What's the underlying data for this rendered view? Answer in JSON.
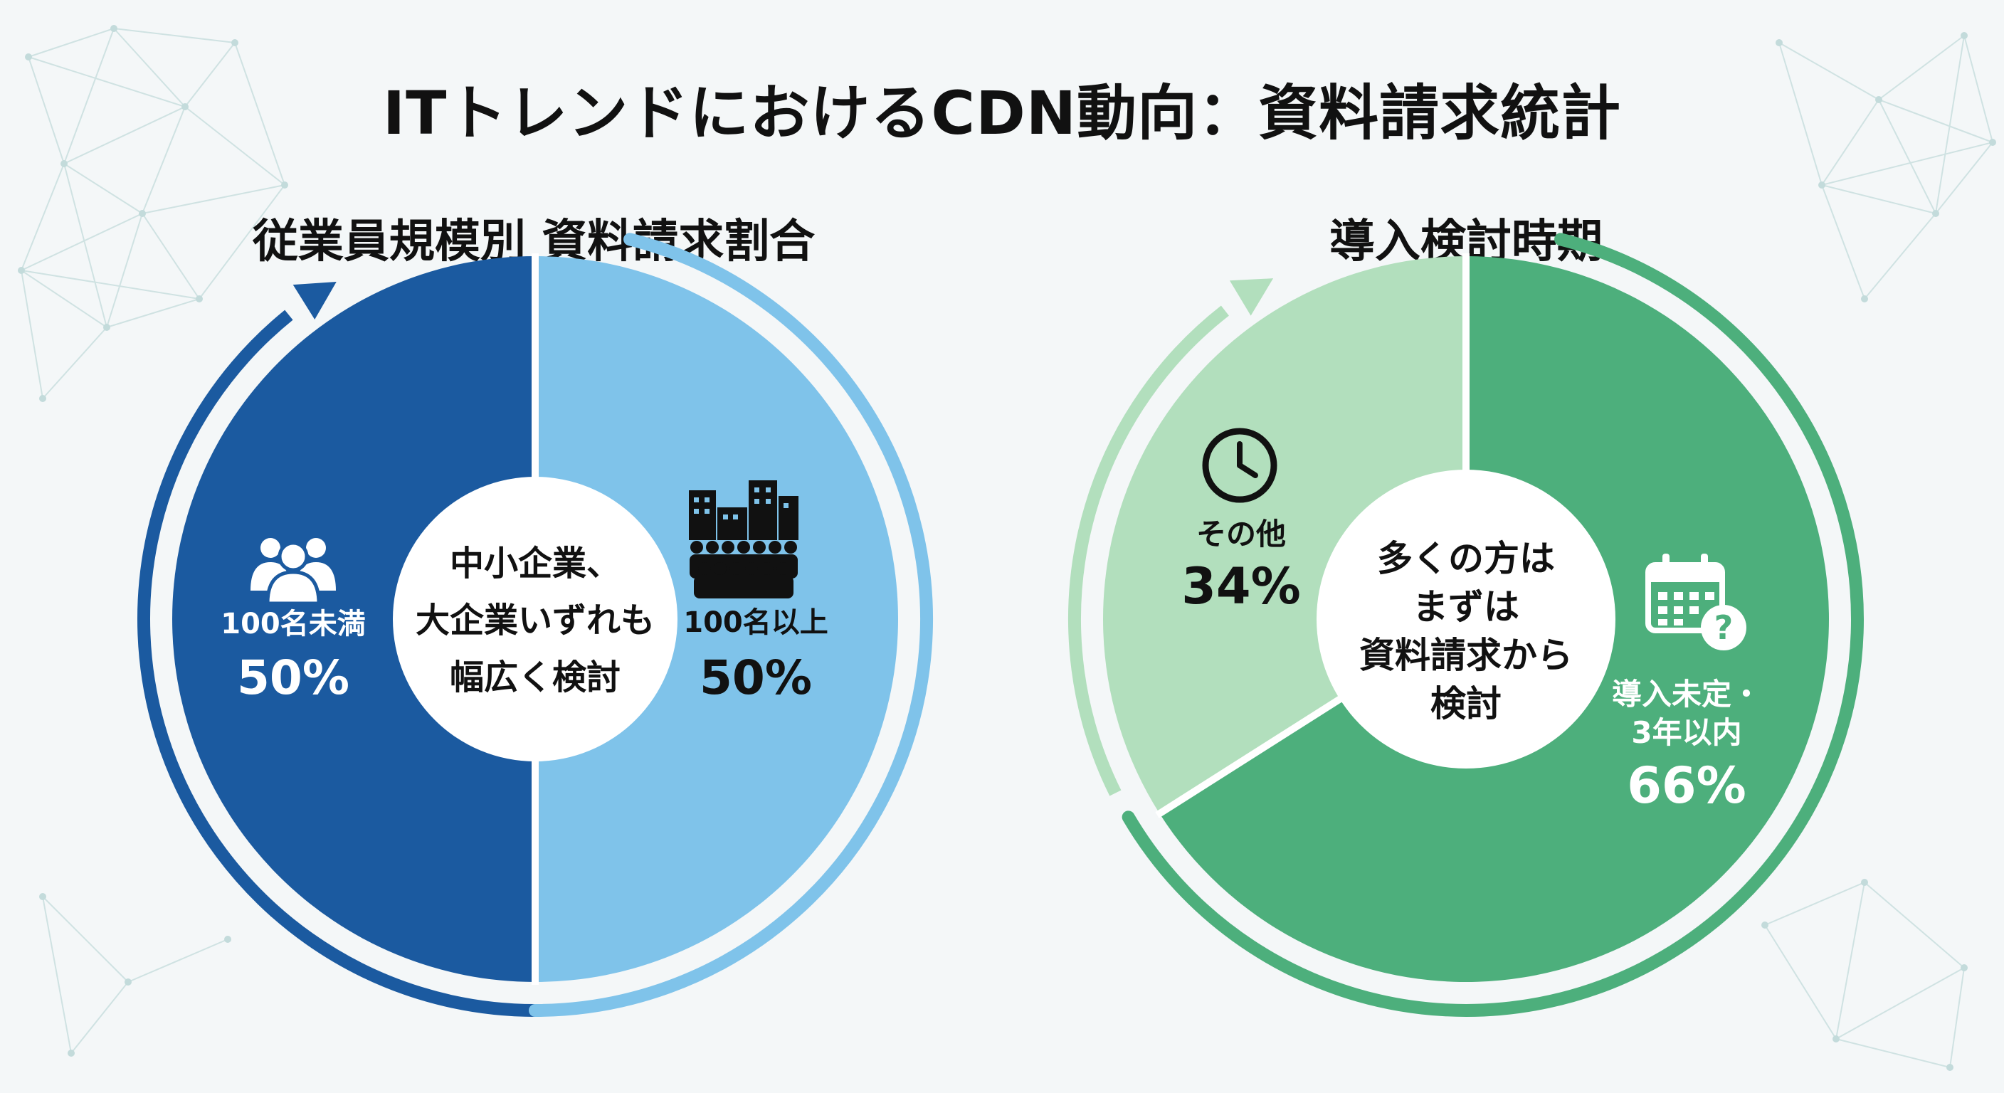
{
  "title": "ITトレンドにおけるCDN動向：資料請求統計",
  "colors": {
    "left_dark": "#1b5aa0",
    "left_light": "#7fc3ea",
    "right_dark": "#4daf7c",
    "right_light": "#b2dfbd"
  },
  "chart_data": [
    {
      "type": "pie",
      "title": "従業員規模別 資料請求割合",
      "center_text": [
        "中小企業、",
        "大企業いずれも",
        "幅広く検討"
      ],
      "slices": [
        {
          "label": "100名未満",
          "value": 50,
          "value_label": "50%",
          "icon": "people-icon"
        },
        {
          "label": "100名以上",
          "value": 50,
          "value_label": "50%",
          "icon": "buildings-crowd-icon"
        }
      ]
    },
    {
      "type": "pie",
      "title": "導入検討時期",
      "center_text": [
        "多くの方は",
        "まずは",
        "資料請求から",
        "検討"
      ],
      "slices": [
        {
          "label": "導入未定・3年以内",
          "label_lines": [
            "導入未定・",
            "3年以内"
          ],
          "value": 66,
          "value_label": "66%",
          "icon": "calendar-question-icon"
        },
        {
          "label": "その他",
          "value": 34,
          "value_label": "34%",
          "icon": "clock-icon"
        }
      ]
    }
  ]
}
